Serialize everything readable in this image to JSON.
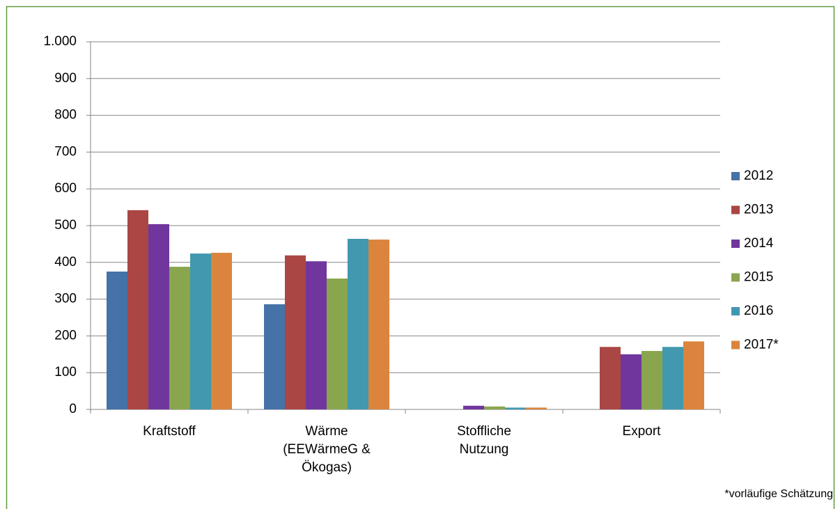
{
  "chart_data": {
    "type": "bar",
    "categories": [
      "Kraftstoff",
      "Wärme\n(EEWärmeG &\nÖkogas)",
      "Stoffliche\nNutzung",
      "Export"
    ],
    "series": [
      {
        "name": "2012",
        "color": "#4572a7",
        "values": [
          375,
          286,
          0,
          0
        ]
      },
      {
        "name": "2013",
        "color": "#aa4643",
        "values": [
          542,
          419,
          0,
          170
        ]
      },
      {
        "name": "2014",
        "color": "#71369d",
        "values": [
          504,
          403,
          10,
          150
        ]
      },
      {
        "name": "2015",
        "color": "#89a54e",
        "values": [
          388,
          356,
          8,
          159
        ]
      },
      {
        "name": "2016",
        "color": "#4198af",
        "values": [
          424,
          464,
          5,
          170
        ]
      },
      {
        "name": "2017*",
        "color": "#db843d",
        "values": [
          426,
          462,
          5,
          185
        ]
      }
    ],
    "ylim": [
      0,
      1000
    ],
    "yticks": [
      0,
      100,
      200,
      300,
      400,
      500,
      600,
      700,
      800,
      900,
      {
        "value": 1000,
        "label": "1.000"
      }
    ],
    "grid": true,
    "legend": "right",
    "note": "*vorläufige Schätzung"
  }
}
